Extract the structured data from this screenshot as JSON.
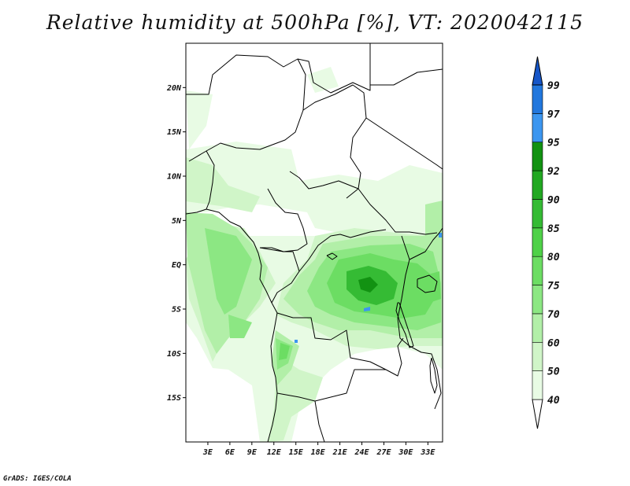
{
  "title": "Relative humidity at 500hPa [%], VT: 2020042115",
  "credit": "GrADS: IGES/COLA",
  "map": {
    "lat_ticks": [
      "20N",
      "15N",
      "10N",
      "5N",
      "EQ",
      "5S",
      "10S",
      "15S"
    ],
    "lon_ticks": [
      "3E",
      "6E",
      "9E",
      "12E",
      "15E",
      "18E",
      "21E",
      "24E",
      "27E",
      "30E",
      "33E"
    ],
    "lon_range": [
      0,
      35
    ],
    "lat_range": [
      -20,
      25
    ]
  },
  "colorbar": {
    "levels": [
      "40",
      "50",
      "60",
      "70",
      "75",
      "80",
      "85",
      "90",
      "92",
      "95",
      "97",
      "99"
    ],
    "colors": [
      "#ffffff",
      "#e8fbe4",
      "#d0f5c8",
      "#b2efa8",
      "#8ce783",
      "#6cdd63",
      "#4fd148",
      "#35bb34",
      "#22a822",
      "#129212",
      "#3c96f0",
      "#2277dd",
      "#1656c8"
    ]
  },
  "legend_colors": {
    "land_border": "#000000",
    "frame": "#000000"
  }
}
